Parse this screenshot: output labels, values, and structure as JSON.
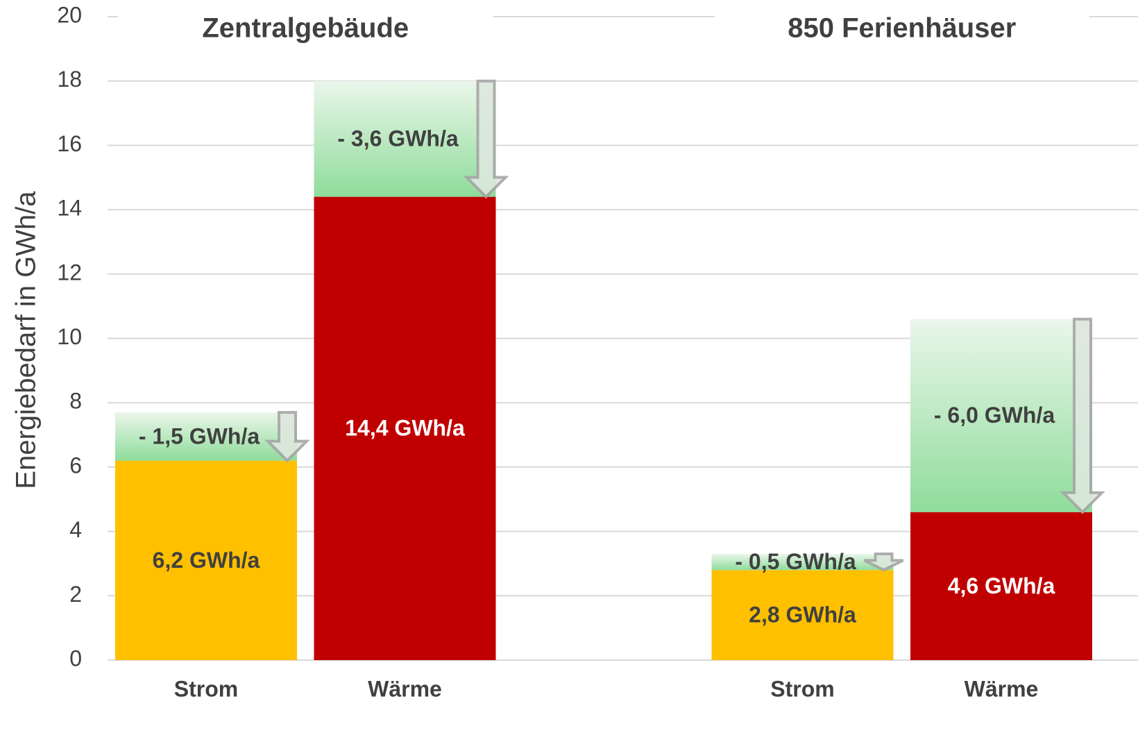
{
  "chart_data": {
    "type": "stacked_bar",
    "y_label": "Energiebedarf in GWh/a",
    "groups": [
      "Zentralgebäude",
      "850 Ferienhäuser"
    ],
    "categories": [
      "Strom",
      "Wärme",
      "Strom",
      "Wärme"
    ],
    "series": [
      {
        "colors": [
          "#ffc000",
          "#c00000",
          "#ffc000",
          "#c00000"
        ],
        "label_colors": [
          "#404040",
          "#ffffff",
          "#404040",
          "#ffffff"
        ],
        "values": [
          6.2,
          14.4,
          2.8,
          4.6
        ],
        "value_labels": [
          "6,2 GWh/a",
          "14,4 GWh/a",
          "2,8 GWh/a",
          "4,6 GWh/a"
        ]
      },
      {
        "color": "#8fdc9b",
        "values": [
          1.5,
          3.6,
          0.5,
          6.0
        ],
        "value_labels": [
          "- 1,5 GWh/a",
          "- 3,6 GWh/a",
          "- 0,5 GWh/a",
          "- 6,0 GWh/a"
        ]
      }
    ],
    "ylim": [
      0,
      20
    ],
    "yticks": [
      0,
      2,
      4,
      6,
      8,
      10,
      12,
      14,
      16,
      18,
      20
    ],
    "grid": true
  }
}
